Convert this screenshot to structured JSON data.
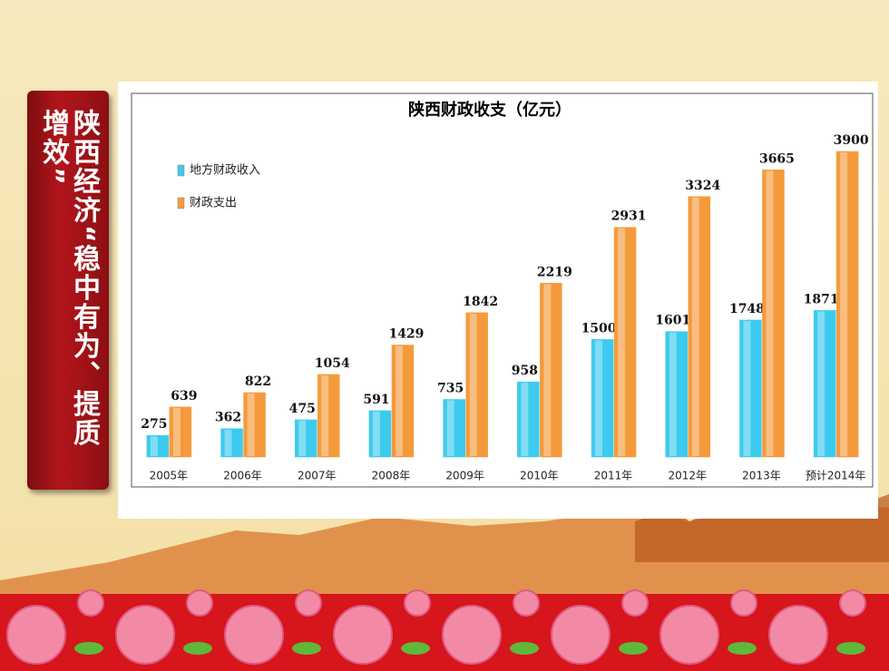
{
  "sidebar_text": "陕西经济“稳中有为、提质增效”",
  "chart_data": {
    "type": "bar",
    "title": "陕西财政收支（亿元）",
    "categories": [
      "2005年",
      "2006年",
      "2007年",
      "2008年",
      "2009年",
      "2010年",
      "2011年",
      "2012年",
      "2013年",
      "预计2014年"
    ],
    "series": [
      {
        "name": "地方财政收入",
        "color": "#3ccbee",
        "values": [
          275,
          362,
          475,
          591,
          735,
          958,
          1500,
          1601,
          1748,
          1871
        ]
      },
      {
        "name": "财政支出",
        "color": "#f59a3c",
        "values": [
          639,
          822,
          1054,
          1429,
          1842,
          2219,
          2931,
          3324,
          3665,
          3900
        ]
      }
    ]
  }
}
